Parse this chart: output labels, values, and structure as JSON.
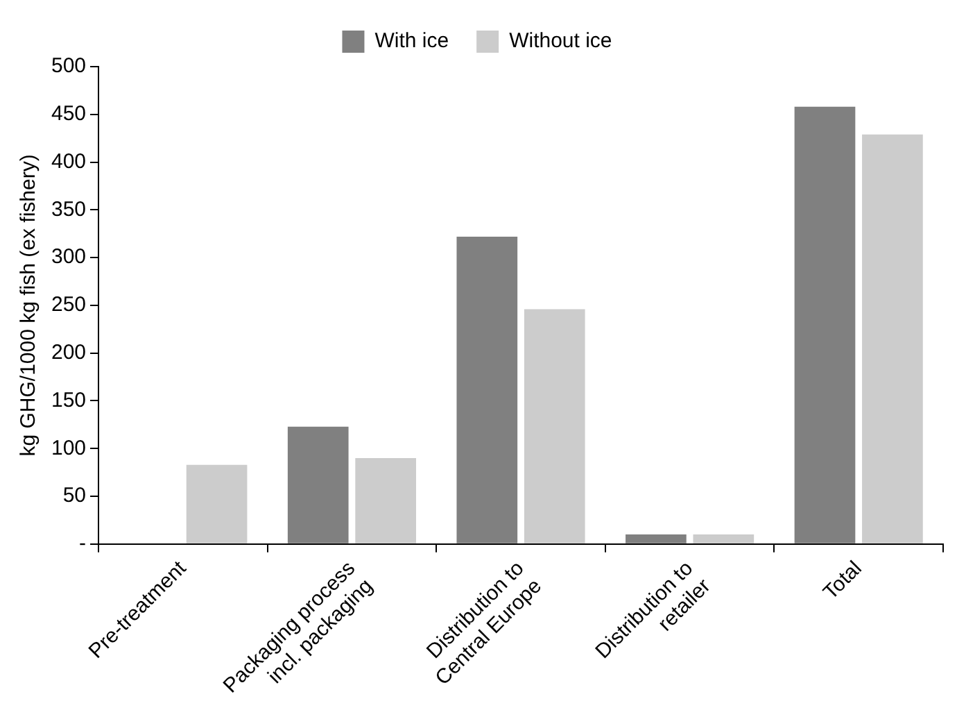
{
  "chart_data": {
    "type": "bar",
    "ylabel": "kg GHG/1000 kg fish (ex fishery)",
    "categories": [
      "Pre-treatment",
      "Packaging process\nincl. packaging",
      "Distribution to\nCentral Europe",
      "Distribution to\nretailer",
      "Total"
    ],
    "series": [
      {
        "name": "With ice",
        "color": "#808080",
        "values": [
          0,
          123,
          322,
          10,
          458
        ]
      },
      {
        "name": "Without ice",
        "color": "#cccccc",
        "values": [
          83,
          90,
          246,
          10,
          429
        ]
      }
    ],
    "ylim": [
      0,
      500
    ],
    "yticks": [
      {
        "value": 0,
        "label": "-"
      },
      50,
      100,
      150,
      200,
      250,
      300,
      350,
      400,
      450,
      500
    ],
    "grid": false,
    "legend": "top"
  }
}
